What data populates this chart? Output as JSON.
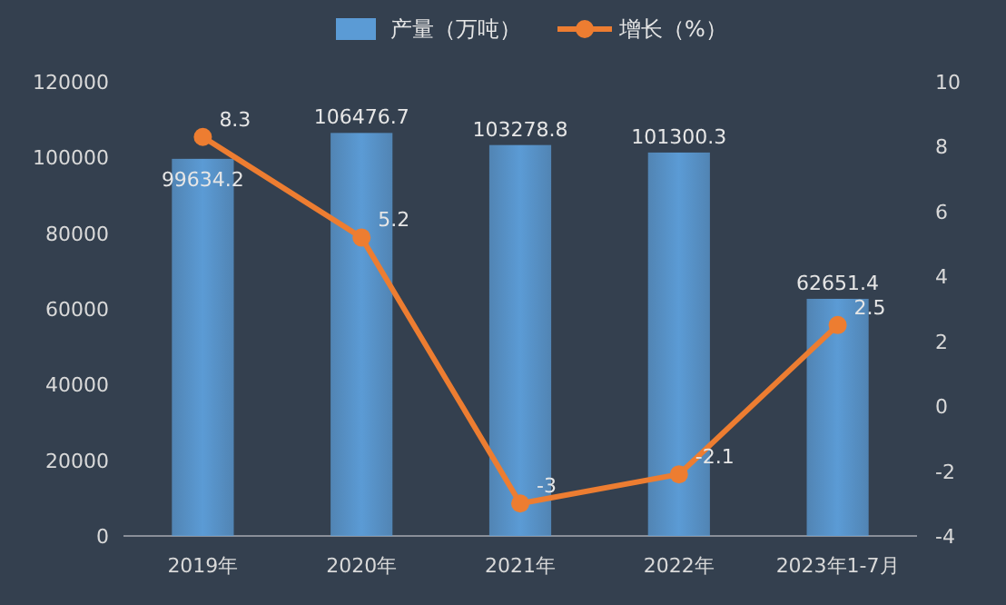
{
  "chart_data": {
    "type": "bar",
    "categories": [
      "2019年",
      "2020年",
      "2021年",
      "2022年",
      "2023年1-7月"
    ],
    "series": [
      {
        "name": "产量（万吨）",
        "color": "#5b9bd5",
        "values": [
          99634.2,
          106476.7,
          103278.8,
          101300.3,
          62651.4
        ]
      },
      {
        "name": "增长（%）",
        "type": "line",
        "axis": "y2",
        "color": "#ed7d31",
        "values": [
          8.3,
          5.2,
          -3,
          -2.1,
          2.5
        ]
      }
    ],
    "ylim": [
      0,
      120000
    ],
    "yticks": [
      0,
      20000,
      40000,
      60000,
      80000,
      100000,
      120000
    ],
    "y2lim": [
      -4,
      10
    ],
    "y2ticks": [
      -4,
      -2,
      0,
      2,
      4,
      6,
      8,
      10
    ],
    "data_labels": true,
    "legend": "top",
    "marker": "circle",
    "line_style": "solid"
  }
}
